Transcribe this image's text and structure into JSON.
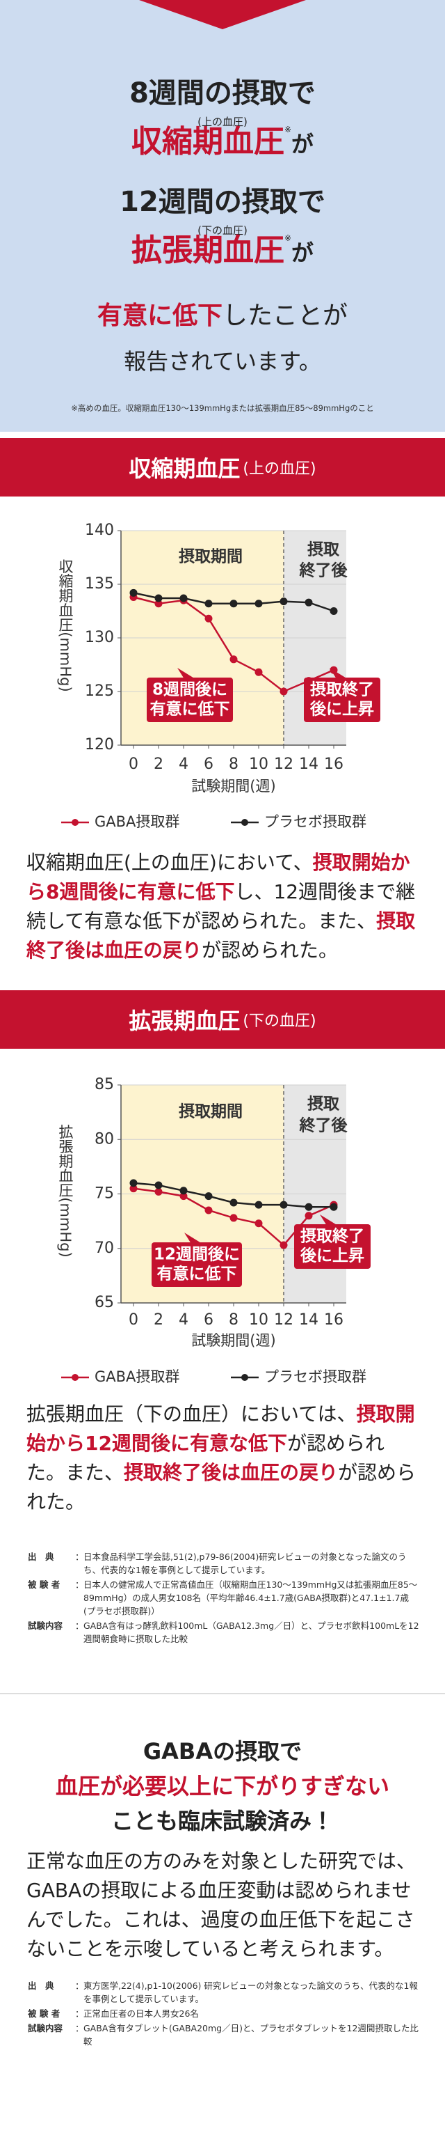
{
  "intro": {
    "line1": "8週間の摂取で",
    "note1": "(上の血圧)",
    "term1": "収縮期血圧",
    "mark1": "※",
    "tail1": "が",
    "line2": "12週間の摂取で",
    "note2": "(下の血圧)",
    "term2": "拡張期血圧",
    "mark2": "※",
    "tail2": "が",
    "emphasis": "有意に低下",
    "emphasis_tail": "したことが",
    "line4": "報告されています。",
    "footnote": "※高めの血圧。収縮期血圧130〜139mmHgまたは拡張期血圧85〜89mmHgのこと"
  },
  "sections": [
    {
      "title": "収縮期血圧",
      "subtitle": "(上の血圧)",
      "paragraph": [
        {
          "text": "収縮期血圧(上の血圧)において、",
          "highlight": false
        },
        {
          "text": "摂取開始から8週間後に有意に低下",
          "highlight": true
        },
        {
          "text": "し、12週間後まで継続して有意な低下が認められた。また、",
          "highlight": false
        },
        {
          "text": "摂取終了後は血圧の戻り",
          "highlight": true
        },
        {
          "text": "が認められた。",
          "highlight": false
        }
      ]
    },
    {
      "title": "拡張期血圧",
      "subtitle": "(下の血圧)",
      "paragraph": [
        {
          "text": "拡張期血圧（下の血圧）においては、",
          "highlight": false
        },
        {
          "text": "摂取開始から12週間後に有意な低下",
          "highlight": true
        },
        {
          "text": "が認められた。また、",
          "highlight": false
        },
        {
          "text": "摂取終了後は血圧の戻り",
          "highlight": true
        },
        {
          "text": "が認められた。",
          "highlight": false
        }
      ]
    }
  ],
  "chart_data": [
    {
      "type": "line",
      "y_label": "収縮期血圧(mmHg)",
      "x_label": "試験期間(週)",
      "x": [
        0,
        2,
        4,
        6,
        8,
        10,
        12,
        14,
        16
      ],
      "xlim": [
        -1,
        17
      ],
      "xticks": [
        0,
        2,
        4,
        6,
        8,
        10,
        12,
        14,
        16
      ],
      "ylim": [
        120,
        140
      ],
      "yticks": [
        120,
        125,
        130,
        135,
        140
      ],
      "grid": true,
      "phase_boundary": 12,
      "phases": [
        [
          "摂取期間"
        ],
        [
          "摂取",
          "終了後"
        ]
      ],
      "annotations": [
        [
          "8週間後に",
          "有意に低下"
        ],
        [
          "摂取終了",
          "後に上昇"
        ]
      ],
      "series": [
        {
          "name": "GABA摂取群",
          "color": "#c4122f",
          "values": [
            133.8,
            133.2,
            133.5,
            131.8,
            128,
            126.8,
            125,
            126,
            127
          ]
        },
        {
          "name": "プラセボ摂取群",
          "color": "#222222",
          "values": [
            134.2,
            133.7,
            133.7,
            133.2,
            133.2,
            133.2,
            133.4,
            133.3,
            132.5
          ]
        }
      ]
    },
    {
      "type": "line",
      "y_label": "拡張期血圧(mmHg)",
      "x_label": "試験期間(週)",
      "x": [
        0,
        2,
        4,
        6,
        8,
        10,
        12,
        14,
        16
      ],
      "xlim": [
        -1,
        17
      ],
      "xticks": [
        0,
        2,
        4,
        6,
        8,
        10,
        12,
        14,
        16
      ],
      "ylim": [
        65,
        85
      ],
      "yticks": [
        65,
        70,
        75,
        80,
        85
      ],
      "grid": true,
      "phase_boundary": 12,
      "phases": [
        [
          "摂取期間"
        ],
        [
          "摂取",
          "終了後"
        ]
      ],
      "annotations": [
        [
          "12週間後に",
          "有意に低下"
        ],
        [
          "摂取終了",
          "後に上昇"
        ]
      ],
      "series": [
        {
          "name": "GABA摂取群",
          "color": "#c4122f",
          "values": [
            75.5,
            75.2,
            74.8,
            73.5,
            72.8,
            72.3,
            70.3,
            73,
            74
          ]
        },
        {
          "name": "プラセボ摂取群",
          "color": "#222222",
          "values": [
            76,
            75.8,
            75.3,
            74.8,
            74.2,
            74,
            74,
            73.8,
            73.8
          ]
        }
      ]
    }
  ],
  "references": [
    [
      {
        "label": "出　典",
        "text": "日本食品科学工学会誌,51(2),p79-86(2004)研究レビューの対象となった論文のうち、代表的な1報を事例として提示しています。"
      },
      {
        "label": "被 験 者",
        "text": "日本人の健常成人で正常高値血圧（収縮期血圧130〜139mmHg又は拡張期血圧85〜89mmHg）の成人男女108名（平均年齢46.4±1.7歳(GABA摂取群)と47.1±1.7歳(プラセボ摂取群)）"
      },
      {
        "label": "試験内容",
        "text": "GABA含有はっ酵乳飲料100mL（GABA12.3mg／日）と、プラセボ飲料100mLを12週間朝食時に摂取した比較"
      }
    ],
    [
      {
        "label": "出　典",
        "text": "東方医学,22(4),p1-10(2006) 研究レビューの対象となった論文のうち、代表的な1報を事例として提示しています。"
      },
      {
        "label": "被 験 者",
        "text": "正常血圧者の日本人男女26名"
      },
      {
        "label": "試験内容",
        "text": "GABA含有タブレット(GABA20mg／日)と、プラセボタブレットを12週間摂取した比較"
      }
    ]
  ],
  "conclusion": {
    "line1": "GABAの摂取で",
    "line2": "血圧が必要以上に下がりすぎない",
    "line3": "ことも臨床試験済み！",
    "paragraph": "正常な血圧の方のみを対象とした研究では、GABAの摂取による血圧変動は認められませんでした。これは、過度の血圧低下を起こさないことを示唆していると考えられます。"
  }
}
